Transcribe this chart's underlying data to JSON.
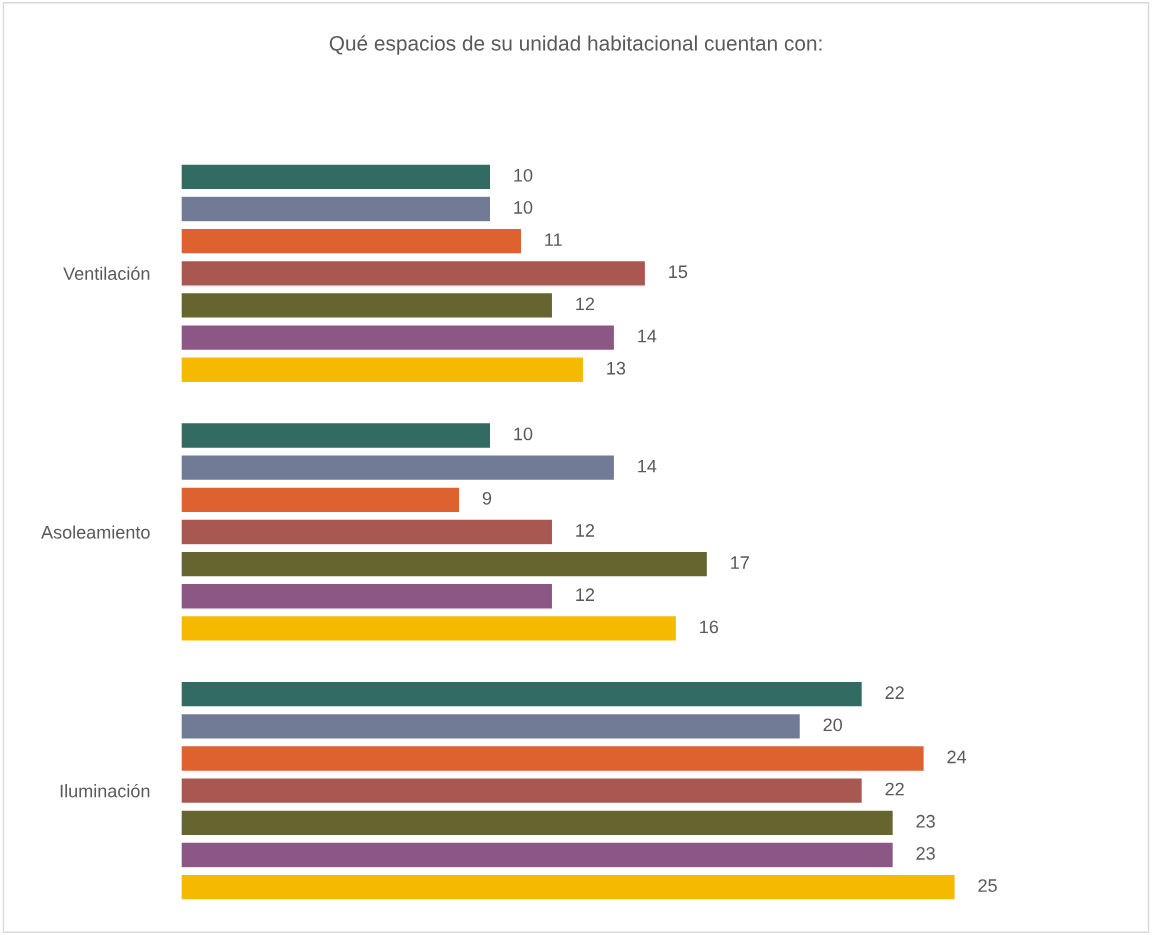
{
  "chart_data": {
    "type": "bar",
    "orientation": "horizontal",
    "title": "Qué espacios de su unidad habitacional cuentan con:",
    "categories": [
      "Ventilación",
      "Asoleamiento",
      "Iluminación"
    ],
    "series": [
      {
        "color": "#316b62",
        "values": [
          10,
          10,
          22
        ]
      },
      {
        "color": "#717b95",
        "values": [
          10,
          14,
          20
        ]
      },
      {
        "color": "#dd6230",
        "values": [
          11,
          9,
          24
        ]
      },
      {
        "color": "#a95751",
        "values": [
          15,
          12,
          22
        ]
      },
      {
        "color": "#67652f",
        "values": [
          12,
          17,
          23
        ]
      },
      {
        "color": "#8c5784",
        "values": [
          14,
          12,
          23
        ]
      },
      {
        "color": "#f5ba00",
        "values": [
          13,
          16,
          25
        ]
      }
    ],
    "data_labels": true,
    "grid": false,
    "legend": false
  }
}
